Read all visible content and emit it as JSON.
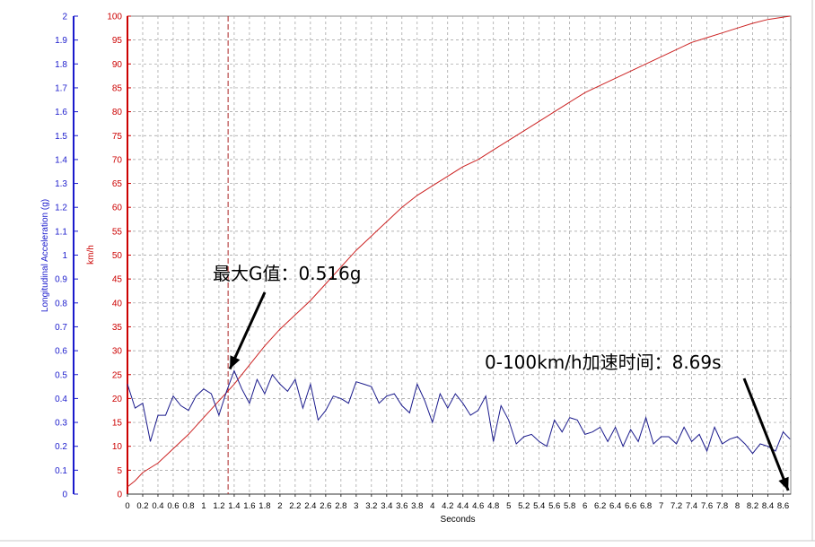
{
  "chart_data": {
    "type": "line",
    "x_label": "Seconds",
    "left_axis": {
      "label": "Longitudinal Acceleration (g)",
      "range": [
        0,
        2
      ],
      "ticks": [
        "0",
        "0.1",
        "0.2",
        "0.3",
        "0.4",
        "0.5",
        "0.6",
        "0.7",
        "0.8",
        "0.9",
        "1",
        "1.1",
        "1.2",
        "1.3",
        "1.4",
        "1.5",
        "1.6",
        "1.7",
        "1.8",
        "1.9",
        "2"
      ],
      "color": "#1a1acc"
    },
    "right_axis": {
      "label": "km/h",
      "range": [
        0,
        100
      ],
      "ticks": [
        "0",
        "5",
        "10",
        "15",
        "20",
        "25",
        "30",
        "35",
        "40",
        "45",
        "50",
        "55",
        "60",
        "65",
        "70",
        "75",
        "80",
        "85",
        "90",
        "95",
        "100"
      ],
      "color": "#cc0000"
    },
    "x_range": [
      0,
      8.7
    ],
    "x_ticks": [
      "0",
      "0.2",
      "0.4",
      "0.6",
      "0.8",
      "1",
      "1.2",
      "1.4",
      "1.6",
      "1.8",
      "2",
      "2.2",
      "2.4",
      "2.6",
      "2.8",
      "3",
      "3.2",
      "3.4",
      "3.6",
      "3.8",
      "4",
      "4.2",
      "4.4",
      "4.6",
      "4.8",
      "5",
      "5.2",
      "5.4",
      "5.6",
      "5.8",
      "6",
      "6.2",
      "6.4",
      "6.6",
      "6.8",
      "7",
      "7.2",
      "7.4",
      "7.6",
      "7.8",
      "8",
      "8.2",
      "8.4",
      "8.6"
    ],
    "grid": true,
    "series": [
      {
        "axis": "right",
        "color": "#cc2222",
        "x": [
          0,
          0.1,
          0.2,
          0.4,
          0.6,
          0.8,
          1.0,
          1.2,
          1.4,
          1.6,
          1.8,
          2.0,
          2.2,
          2.4,
          2.6,
          2.8,
          3.0,
          3.2,
          3.4,
          3.6,
          3.8,
          4.0,
          4.2,
          4.4,
          4.6,
          4.8,
          5.0,
          5.2,
          5.4,
          5.6,
          5.8,
          6.0,
          6.2,
          6.4,
          6.6,
          6.8,
          7.0,
          7.2,
          7.4,
          7.6,
          7.8,
          8.0,
          8.2,
          8.4,
          8.6,
          8.69
        ],
        "y": [
          1.5,
          2.8,
          4.5,
          6.5,
          9.5,
          12.5,
          16,
          19.5,
          23,
          27,
          31,
          34.5,
          37.5,
          40.5,
          44,
          47.5,
          51,
          54,
          57,
          60,
          62.5,
          64.5,
          66.5,
          68.5,
          70,
          72,
          74,
          76,
          78,
          80,
          82,
          84,
          85.5,
          87,
          88.5,
          90,
          91.5,
          93,
          94.5,
          95.5,
          96.5,
          97.5,
          98.5,
          99.3,
          99.8,
          100
        ]
      },
      {
        "axis": "left",
        "color": "#1a1a8c",
        "x": [
          0,
          0.1,
          0.2,
          0.3,
          0.4,
          0.5,
          0.6,
          0.7,
          0.8,
          0.9,
          1.0,
          1.1,
          1.2,
          1.3,
          1.4,
          1.5,
          1.6,
          1.7,
          1.8,
          1.9,
          2.0,
          2.1,
          2.2,
          2.3,
          2.4,
          2.5,
          2.6,
          2.7,
          2.8,
          2.9,
          3.0,
          3.1,
          3.2,
          3.3,
          3.4,
          3.5,
          3.6,
          3.7,
          3.8,
          3.9,
          4.0,
          4.1,
          4.2,
          4.3,
          4.4,
          4.5,
          4.6,
          4.7,
          4.8,
          4.9,
          5.0,
          5.1,
          5.2,
          5.3,
          5.4,
          5.5,
          5.6,
          5.7,
          5.8,
          5.9,
          6.0,
          6.1,
          6.2,
          6.3,
          6.4,
          6.5,
          6.6,
          6.7,
          6.8,
          6.9,
          7.0,
          7.1,
          7.2,
          7.3,
          7.4,
          7.5,
          7.6,
          7.7,
          7.8,
          7.9,
          8.0,
          8.1,
          8.2,
          8.3,
          8.4,
          8.5,
          8.6,
          8.69
        ],
        "y": [
          0.46,
          0.36,
          0.38,
          0.22,
          0.33,
          0.33,
          0.41,
          0.37,
          0.35,
          0.41,
          0.44,
          0.42,
          0.33,
          0.43,
          0.516,
          0.44,
          0.38,
          0.48,
          0.42,
          0.5,
          0.46,
          0.43,
          0.48,
          0.36,
          0.46,
          0.31,
          0.35,
          0.41,
          0.4,
          0.38,
          0.47,
          0.46,
          0.45,
          0.38,
          0.41,
          0.42,
          0.37,
          0.34,
          0.46,
          0.39,
          0.3,
          0.42,
          0.36,
          0.42,
          0.38,
          0.33,
          0.35,
          0.41,
          0.22,
          0.37,
          0.31,
          0.21,
          0.24,
          0.25,
          0.22,
          0.2,
          0.31,
          0.26,
          0.32,
          0.31,
          0.25,
          0.26,
          0.28,
          0.22,
          0.28,
          0.2,
          0.27,
          0.22,
          0.32,
          0.21,
          0.24,
          0.24,
          0.21,
          0.28,
          0.22,
          0.25,
          0.18,
          0.28,
          0.21,
          0.23,
          0.24,
          0.21,
          0.17,
          0.21,
          0.2,
          0.18,
          0.26,
          0.23
        ]
      }
    ],
    "marker": {
      "x": 1.32,
      "color": "#aa2222",
      "style": "dashed"
    },
    "annotations": [
      {
        "text": "最大G值：0.516g",
        "points_to": {
          "x": 1.32,
          "y_left": 0.516
        }
      },
      {
        "text": "0-100km/h加速时间：8.69s",
        "points_to": {
          "x": 8.69,
          "y_left": 0
        }
      }
    ]
  }
}
